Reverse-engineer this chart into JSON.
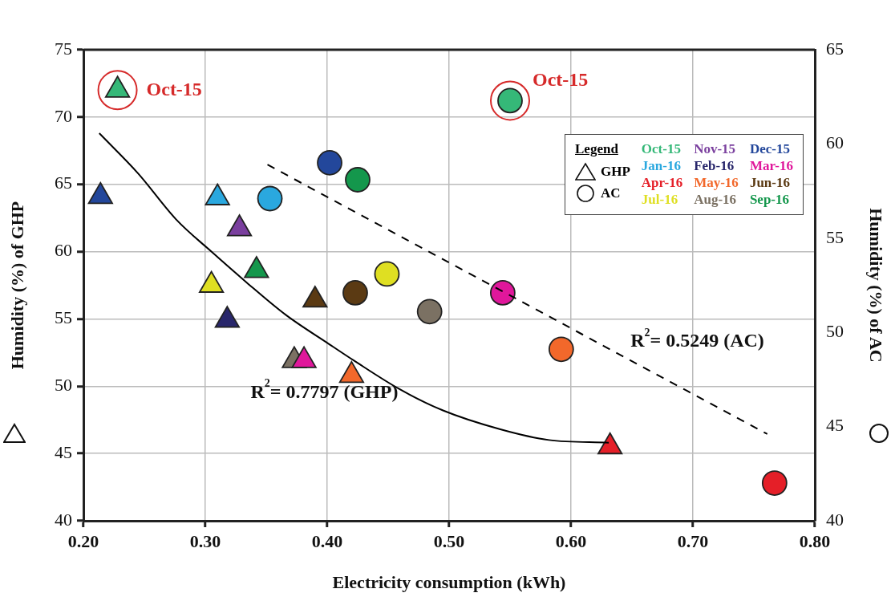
{
  "chart_data": {
    "type": "scatter",
    "xlabel": "Electricity consumption (kWh)",
    "ylabel": "Humidity (%) of GHP",
    "y2label": "Humidity (%) of AC",
    "legend": "top right",
    "legend_title": "Legend",
    "grid": true,
    "xlim": [
      0.2,
      0.8
    ],
    "xticks": [
      {
        "value": 0.2,
        "label": "0.20"
      },
      {
        "value": 0.3,
        "label": "0.30"
      },
      {
        "value": 0.4,
        "label": "0.40"
      },
      {
        "value": 0.5,
        "label": "0.50"
      },
      {
        "value": 0.6,
        "label": "0.60"
      },
      {
        "value": 0.7,
        "label": "0.70"
      },
      {
        "value": 0.8,
        "label": "0.80"
      }
    ],
    "ylim": [
      40,
      75
    ],
    "yticks": [
      40,
      45,
      50,
      55,
      60,
      65,
      70,
      75
    ],
    "y2lim": [
      40,
      65
    ],
    "y2ticks": [
      40,
      45,
      50,
      55,
      60,
      65
    ],
    "series": [
      {
        "name": "Oct-15",
        "color": "#35b878",
        "marker": "triangle",
        "x": [
          0.228
        ],
        "values": [
          72.0
        ]
      },
      {
        "name": "Nov-15",
        "color": "#7a3f9e",
        "marker": "triangle",
        "x": [
          0.328
        ],
        "values": [
          61.7
        ]
      },
      {
        "name": "Dec-15",
        "color": "#23479b",
        "marker": "triangle",
        "x": [
          0.214
        ],
        "values": [
          64.1
        ]
      },
      {
        "name": "Jan-16",
        "color": "#2aa8df",
        "marker": "triangle",
        "x": [
          0.31
        ],
        "values": [
          64.0
        ]
      },
      {
        "name": "Feb-16",
        "color": "#28266b",
        "marker": "triangle",
        "x": [
          0.318
        ],
        "values": [
          54.9
        ]
      },
      {
        "name": "Mar-16",
        "color": "#e0179b",
        "marker": "triangle",
        "x": [
          0.381
        ],
        "values": [
          51.9
        ]
      },
      {
        "name": "Apr-16",
        "color": "#e51f28",
        "marker": "triangle",
        "x": [
          0.632
        ],
        "values": [
          45.5
        ]
      },
      {
        "name": "May-16",
        "color": "#f2682b",
        "marker": "triangle",
        "x": [
          0.42
        ],
        "values": [
          50.8
        ]
      },
      {
        "name": "Jun-16",
        "color": "#5b3a13",
        "marker": "triangle",
        "x": [
          0.39
        ],
        "values": [
          56.4
        ]
      },
      {
        "name": "Jul-16",
        "color": "#dfdf22",
        "marker": "triangle",
        "x": [
          0.305
        ],
        "values": [
          57.5
        ]
      },
      {
        "name": "Aug-16",
        "color": "#7b7163",
        "marker": "triangle",
        "x": [
          0.373
        ],
        "values": [
          51.9
        ]
      },
      {
        "name": "Sep-16",
        "color": "#14974c",
        "marker": "triangle",
        "x": [
          0.342
        ],
        "values": [
          58.6
        ]
      },
      {
        "color": "#35b878",
        "marker": "circle",
        "axis": "y2",
        "x": [
          0.55
        ],
        "values": [
          62.3
        ]
      },
      {
        "color": "#23479b",
        "marker": "circle",
        "axis": "y2",
        "x": [
          0.402
        ],
        "values": [
          59.0
        ]
      },
      {
        "color": "#2aa8df",
        "marker": "circle",
        "axis": "y2",
        "x": [
          0.353
        ],
        "values": [
          57.1
        ]
      },
      {
        "color": "#e0179b",
        "marker": "circle",
        "axis": "y2",
        "x": [
          0.544
        ],
        "values": [
          52.1
        ]
      },
      {
        "color": "#e51f28",
        "marker": "circle",
        "axis": "y2",
        "x": [
          0.767
        ],
        "values": [
          42.0
        ]
      },
      {
        "color": "#f2682b",
        "marker": "circle",
        "axis": "y2",
        "x": [
          0.592
        ],
        "values": [
          49.1
        ]
      },
      {
        "color": "#5b3a13",
        "marker": "circle",
        "axis": "y2",
        "x": [
          0.423
        ],
        "values": [
          52.1
        ]
      },
      {
        "color": "#dfdf22",
        "marker": "circle",
        "axis": "y2",
        "x": [
          0.449
        ],
        "values": [
          53.1
        ]
      },
      {
        "color": "#7b7163",
        "marker": "circle",
        "axis": "y2",
        "x": [
          0.484
        ],
        "values": [
          51.1
        ]
      },
      {
        "color": "#14974c",
        "marker": "circle",
        "axis": "y2",
        "x": [
          0.425
        ],
        "values": [
          58.1
        ]
      },
      {
        "type": "line",
        "color": "#000000",
        "line_style": "solid",
        "marker": "none",
        "x": [
          0.213,
          0.245,
          0.276,
          0.305,
          0.334,
          0.366,
          0.402,
          0.422,
          0.459,
          0.495,
          0.542,
          0.582,
          0.631
        ],
        "values": [
          68.8,
          65.8,
          62.4,
          60.0,
          57.7,
          55.3,
          53.1,
          51.9,
          49.8,
          48.2,
          46.8,
          46.0,
          45.8
        ]
      },
      {
        "type": "line",
        "color": "#000000",
        "line_style": "dashed",
        "marker": "none",
        "axis": "y2",
        "x": [
          0.351,
          0.761
        ],
        "values": [
          58.9,
          44.6
        ]
      }
    ],
    "annotations": [
      "GHP",
      "AC",
      "Oct-15",
      "Oct-15",
      "R$^{2}$= 0.7797 (GHP)",
      "R$^{2}$= 0.5249 (AC)"
    ]
  }
}
